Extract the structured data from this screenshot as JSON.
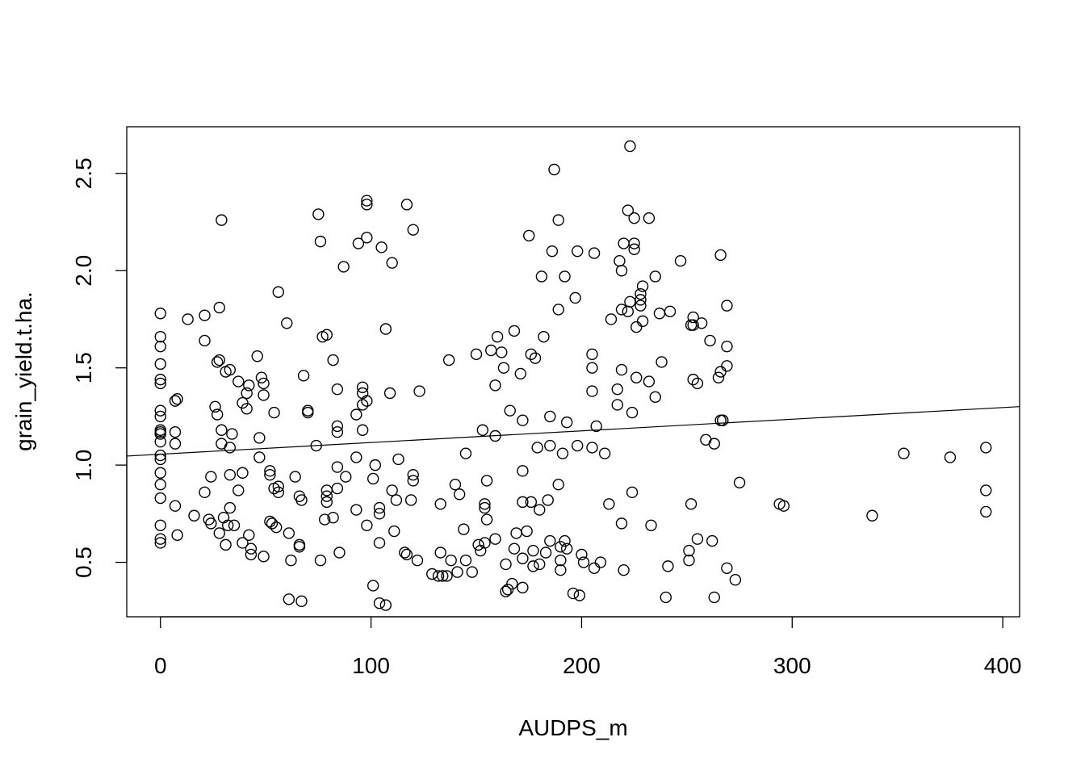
{
  "chart_data": {
    "type": "scatter",
    "title": "",
    "xlabel": "AUDPS_m",
    "ylabel": "grain_yield.t.ha.",
    "xlim": [
      -16,
      408
    ],
    "ylim": [
      0.22,
      2.74
    ],
    "x_ticks": [
      0,
      100,
      200,
      300,
      400
    ],
    "x_tick_labels": [
      "0",
      "100",
      "200",
      "300",
      "400"
    ],
    "y_ticks": [
      0.5,
      1.0,
      1.5,
      2.0,
      2.5
    ],
    "y_tick_labels": [
      "0.5",
      "1.0",
      "1.5",
      "2.0",
      "2.5"
    ],
    "grid": false,
    "regression_line": {
      "intercept": 1.056,
      "slope": 0.0006
    },
    "point_color": "#000000",
    "line_color": "#000000",
    "points": [
      [
        0,
        1.78
      ],
      [
        0,
        1.66
      ],
      [
        0,
        1.61
      ],
      [
        0,
        1.52
      ],
      [
        0,
        1.44
      ],
      [
        0,
        1.42
      ],
      [
        0,
        1.28
      ],
      [
        0,
        1.25
      ],
      [
        0,
        1.18
      ],
      [
        0,
        1.17
      ],
      [
        0,
        1.16
      ],
      [
        0,
        1.12
      ],
      [
        0,
        1.05
      ],
      [
        0,
        1.03
      ],
      [
        0,
        0.96
      ],
      [
        0,
        0.9
      ],
      [
        0,
        0.83
      ],
      [
        0,
        0.69
      ],
      [
        0,
        0.62
      ],
      [
        0,
        0.6
      ],
      [
        7,
        1.33
      ],
      [
        8,
        1.34
      ],
      [
        7,
        1.17
      ],
      [
        7,
        1.11
      ],
      [
        7,
        0.79
      ],
      [
        8,
        0.64
      ],
      [
        13,
        1.75
      ],
      [
        16,
        0.74
      ],
      [
        21,
        1.77
      ],
      [
        21,
        1.64
      ],
      [
        21,
        0.86
      ],
      [
        23,
        0.72
      ],
      [
        24,
        0.7
      ],
      [
        24,
        0.94
      ],
      [
        26,
        1.3
      ],
      [
        27,
        1.53
      ],
      [
        27,
        1.26
      ],
      [
        28,
        1.54
      ],
      [
        28,
        1.81
      ],
      [
        29,
        1.18
      ],
      [
        29,
        1.11
      ],
      [
        28,
        0.65
      ],
      [
        29,
        2.26
      ],
      [
        30,
        0.73
      ],
      [
        31,
        1.48
      ],
      [
        31,
        0.59
      ],
      [
        32,
        0.69
      ],
      [
        33,
        0.78
      ],
      [
        33,
        1.49
      ],
      [
        33,
        1.09
      ],
      [
        34,
        1.16
      ],
      [
        33,
        0.95
      ],
      [
        35,
        0.69
      ],
      [
        37,
        1.43
      ],
      [
        37,
        0.87
      ],
      [
        39,
        1.32
      ],
      [
        39,
        0.96
      ],
      [
        39,
        0.6
      ],
      [
        41,
        1.37
      ],
      [
        41,
        1.29
      ],
      [
        42,
        1.41
      ],
      [
        42,
        0.64
      ],
      [
        43,
        0.57
      ],
      [
        43,
        0.54
      ],
      [
        46,
        1.56
      ],
      [
        47,
        1.14
      ],
      [
        47,
        1.04
      ],
      [
        48,
        1.45
      ],
      [
        49,
        1.42
      ],
      [
        49,
        1.36
      ],
      [
        49,
        0.53
      ],
      [
        52,
        0.97
      ],
      [
        52,
        0.95
      ],
      [
        52,
        0.71
      ],
      [
        53,
        0.7
      ],
      [
        54,
        0.88
      ],
      [
        54,
        1.27
      ],
      [
        55,
        0.68
      ],
      [
        56,
        0.89
      ],
      [
        56,
        0.86
      ],
      [
        56,
        1.89
      ],
      [
        60,
        1.73
      ],
      [
        61,
        0.31
      ],
      [
        61,
        0.65
      ],
      [
        62,
        0.51
      ],
      [
        64,
        0.94
      ],
      [
        66,
        0.84
      ],
      [
        66,
        0.59
      ],
      [
        66,
        0.58
      ],
      [
        67,
        0.82
      ],
      [
        67,
        0.3
      ],
      [
        68,
        1.46
      ],
      [
        70,
        1.28
      ],
      [
        70,
        1.27
      ],
      [
        74,
        1.1
      ],
      [
        75,
        2.29
      ],
      [
        76,
        2.15
      ],
      [
        76,
        0.51
      ],
      [
        77,
        1.66
      ],
      [
        78,
        0.72
      ],
      [
        79,
        1.67
      ],
      [
        79,
        0.87
      ],
      [
        79,
        0.84
      ],
      [
        79,
        0.81
      ],
      [
        82,
        1.54
      ],
      [
        82,
        0.73
      ],
      [
        84,
        1.39
      ],
      [
        84,
        1.2
      ],
      [
        84,
        1.17
      ],
      [
        84,
        0.99
      ],
      [
        84,
        0.88
      ],
      [
        85,
        0.55
      ],
      [
        87,
        2.02
      ],
      [
        88,
        0.94
      ],
      [
        93,
        1.26
      ],
      [
        93,
        0.77
      ],
      [
        93,
        1.04
      ],
      [
        94,
        2.14
      ],
      [
        96,
        1.4
      ],
      [
        96,
        1.37
      ],
      [
        96,
        1.31
      ],
      [
        96,
        1.18
      ],
      [
        98,
        1.33
      ],
      [
        98,
        2.36
      ],
      [
        98,
        2.34
      ],
      [
        98,
        2.17
      ],
      [
        98,
        0.69
      ],
      [
        101,
        0.38
      ],
      [
        101,
        0.93
      ],
      [
        102,
        1.0
      ],
      [
        104,
        0.78
      ],
      [
        104,
        0.75
      ],
      [
        104,
        0.6
      ],
      [
        104,
        0.29
      ],
      [
        105,
        2.12
      ],
      [
        107,
        1.7
      ],
      [
        107,
        0.28
      ],
      [
        109,
        1.37
      ],
      [
        110,
        2.04
      ],
      [
        110,
        0.87
      ],
      [
        111,
        0.66
      ],
      [
        112,
        0.82
      ],
      [
        113,
        1.03
      ],
      [
        116,
        0.55
      ],
      [
        117,
        2.34
      ],
      [
        117,
        0.54
      ],
      [
        119,
        0.82
      ],
      [
        120,
        0.95
      ],
      [
        120,
        0.92
      ],
      [
        120,
        2.21
      ],
      [
        122,
        0.51
      ],
      [
        123,
        1.38
      ],
      [
        129,
        0.44
      ],
      [
        132,
        0.43
      ],
      [
        133,
        0.8
      ],
      [
        133,
        0.55
      ],
      [
        134,
        0.43
      ],
      [
        136,
        0.43
      ],
      [
        137,
        1.54
      ],
      [
        138,
        0.51
      ],
      [
        140,
        0.9
      ],
      [
        141,
        0.45
      ],
      [
        142,
        0.85
      ],
      [
        144,
        0.67
      ],
      [
        145,
        0.51
      ],
      [
        145,
        1.06
      ],
      [
        148,
        0.45
      ],
      [
        150,
        1.57
      ],
      [
        151,
        0.59
      ],
      [
        152,
        0.56
      ],
      [
        153,
        1.18
      ],
      [
        154,
        0.8
      ],
      [
        154,
        0.78
      ],
      [
        154,
        0.6
      ],
      [
        155,
        0.92
      ],
      [
        155,
        0.72
      ],
      [
        157,
        1.59
      ],
      [
        159,
        1.41
      ],
      [
        159,
        1.15
      ],
      [
        159,
        0.62
      ],
      [
        160,
        1.66
      ],
      [
        162,
        1.58
      ],
      [
        163,
        1.5
      ],
      [
        164,
        0.35
      ],
      [
        164,
        0.49
      ],
      [
        165,
        0.36
      ],
      [
        166,
        1.28
      ],
      [
        167,
        0.39
      ],
      [
        168,
        0.57
      ],
      [
        168,
        1.69
      ],
      [
        169,
        0.65
      ],
      [
        171,
        1.47
      ],
      [
        172,
        0.37
      ],
      [
        172,
        0.52
      ],
      [
        172,
        0.81
      ],
      [
        172,
        1.23
      ],
      [
        172,
        0.97
      ],
      [
        174,
        0.66
      ],
      [
        175,
        2.18
      ],
      [
        176,
        1.57
      ],
      [
        176,
        0.81
      ],
      [
        177,
        0.48
      ],
      [
        177,
        0.56
      ],
      [
        178,
        1.55
      ],
      [
        179,
        1.09
      ],
      [
        180,
        0.77
      ],
      [
        180,
        0.49
      ],
      [
        181,
        1.97
      ],
      [
        182,
        1.66
      ],
      [
        183,
        0.55
      ],
      [
        184,
        0.82
      ],
      [
        185,
        1.25
      ],
      [
        185,
        0.61
      ],
      [
        185,
        1.1
      ],
      [
        186,
        2.1
      ],
      [
        187,
        2.52
      ],
      [
        189,
        2.26
      ],
      [
        189,
        1.8
      ],
      [
        189,
        0.9
      ],
      [
        190,
        0.58
      ],
      [
        190,
        0.51
      ],
      [
        190,
        0.46
      ],
      [
        191,
        1.06
      ],
      [
        192,
        1.97
      ],
      [
        192,
        0.61
      ],
      [
        193,
        0.57
      ],
      [
        193,
        1.22
      ],
      [
        196,
        0.34
      ],
      [
        197,
        1.86
      ],
      [
        198,
        2.1
      ],
      [
        198,
        1.1
      ],
      [
        199,
        0.33
      ],
      [
        200,
        0.54
      ],
      [
        201,
        0.5
      ],
      [
        205,
        1.57
      ],
      [
        205,
        1.5
      ],
      [
        205,
        1.38
      ],
      [
        205,
        1.09
      ],
      [
        206,
        2.09
      ],
      [
        206,
        0.47
      ],
      [
        207,
        1.2
      ],
      [
        209,
        0.5
      ],
      [
        211,
        1.06
      ],
      [
        213,
        0.8
      ],
      [
        214,
        1.75
      ],
      [
        217,
        1.39
      ],
      [
        217,
        1.31
      ],
      [
        218,
        2.05
      ],
      [
        219,
        1.8
      ],
      [
        219,
        1.49
      ],
      [
        219,
        2.0
      ],
      [
        219,
        0.7
      ],
      [
        220,
        2.14
      ],
      [
        220,
        0.46
      ],
      [
        222,
        2.31
      ],
      [
        222,
        1.79
      ],
      [
        223,
        2.64
      ],
      [
        223,
        1.84
      ],
      [
        224,
        0.86
      ],
      [
        224,
        1.27
      ],
      [
        225,
        2.14
      ],
      [
        225,
        2.11
      ],
      [
        225,
        2.27
      ],
      [
        226,
        1.71
      ],
      [
        226,
        1.45
      ],
      [
        228,
        1.88
      ],
      [
        228,
        1.85
      ],
      [
        228,
        1.82
      ],
      [
        229,
        1.92
      ],
      [
        229,
        1.74
      ],
      [
        232,
        1.43
      ],
      [
        232,
        2.27
      ],
      [
        233,
        0.69
      ],
      [
        235,
        1.97
      ],
      [
        235,
        1.35
      ],
      [
        237,
        1.78
      ],
      [
        238,
        1.53
      ],
      [
        240,
        0.32
      ],
      [
        241,
        0.48
      ],
      [
        242,
        1.79
      ],
      [
        247,
        2.05
      ],
      [
        251,
        0.51
      ],
      [
        251,
        0.56
      ],
      [
        252,
        1.72
      ],
      [
        252,
        0.8
      ],
      [
        253,
        1.76
      ],
      [
        253,
        1.72
      ],
      [
        253,
        1.44
      ],
      [
        255,
        1.42
      ],
      [
        255,
        0.62
      ],
      [
        257,
        1.73
      ],
      [
        259,
        1.13
      ],
      [
        261,
        1.64
      ],
      [
        262,
        0.61
      ],
      [
        263,
        1.11
      ],
      [
        263,
        0.32
      ],
      [
        265,
        1.45
      ],
      [
        266,
        1.48
      ],
      [
        266,
        2.08
      ],
      [
        266,
        1.23
      ],
      [
        267,
        1.23
      ],
      [
        267,
        1.23
      ],
      [
        269,
        0.47
      ],
      [
        269,
        1.82
      ],
      [
        269,
        1.51
      ],
      [
        269,
        1.61
      ],
      [
        273,
        0.41
      ],
      [
        275,
        0.91
      ],
      [
        294,
        0.8
      ],
      [
        296,
        0.79
      ],
      [
        338,
        0.74
      ],
      [
        353,
        1.06
      ],
      [
        375,
        1.04
      ],
      [
        392,
        1.09
      ],
      [
        392,
        0.87
      ],
      [
        392,
        0.76
      ]
    ]
  }
}
